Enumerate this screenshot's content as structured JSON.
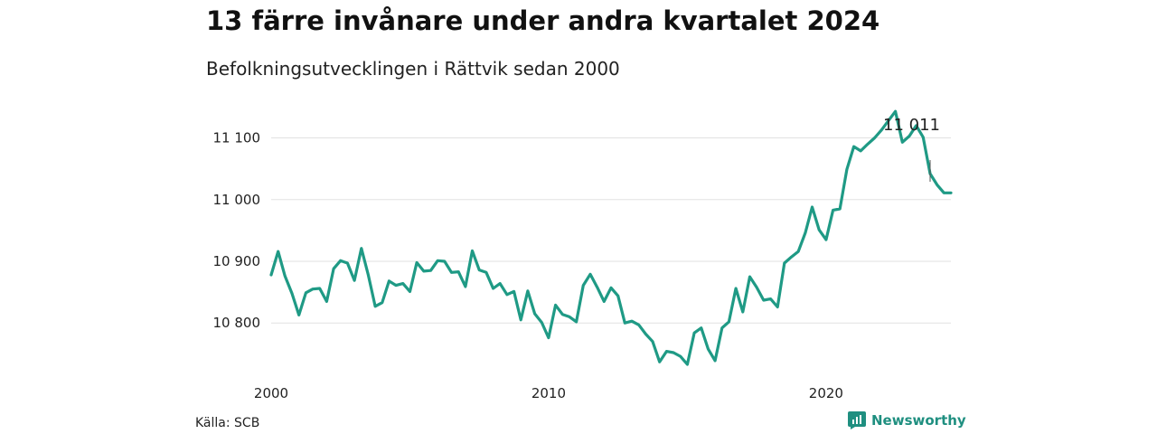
{
  "title": "13 färre invånare under andra kvartalet 2024",
  "subtitle": "Befolkningsutvecklingen i Rättvik sedan 2000",
  "source": "Källa: SCB",
  "brand": {
    "name": "Newsworthy",
    "icon": "newsworthy-logo-icon",
    "color": "#1f8f80"
  },
  "chart_data": {
    "type": "line",
    "title": "13 färre invånare under andra kvartalet 2024",
    "subtitle": "Befolkningsutvecklingen i Rättvik sedan 2000",
    "xlabel": "",
    "ylabel": "",
    "x_ticks": [
      2000,
      2010,
      2020
    ],
    "x_tick_labels": [
      "2000",
      "2010",
      "2020"
    ],
    "y_ticks": [
      10800,
      10900,
      11000,
      11100
    ],
    "y_tick_labels": [
      "10 800",
      "10 900",
      "11 000",
      "11 100"
    ],
    "xlim": [
      2000,
      2024.5
    ],
    "ylim": [
      10730,
      11155
    ],
    "grid": true,
    "line_color": "#1f9a85",
    "end_label": "11 011",
    "series": [
      {
        "x": [
          2000.0,
          2000.25,
          2000.5,
          2000.75,
          2001.0,
          2001.25,
          2001.5,
          2001.75,
          2002.0,
          2002.25,
          2002.5,
          2002.75,
          2003.0,
          2003.25,
          2003.5,
          2003.75,
          2004.0,
          2004.25,
          2004.5,
          2004.75,
          2005.0,
          2005.25,
          2005.5,
          2005.75,
          2006.0,
          2006.25,
          2006.5,
          2006.75,
          2007.0,
          2007.25,
          2007.5,
          2007.75,
          2008.0,
          2008.25,
          2008.5,
          2008.75,
          2009.0,
          2009.25,
          2009.5,
          2009.75,
          2010.0,
          2010.25,
          2010.5,
          2010.75,
          2011.0,
          2011.25,
          2011.5,
          2011.75,
          2012.0,
          2012.25,
          2012.5,
          2012.75,
          2013.0,
          2013.25,
          2013.5,
          2013.75,
          2014.0,
          2014.25,
          2014.5,
          2014.75,
          2015.0,
          2015.25,
          2015.5,
          2015.75,
          2016.0,
          2016.25,
          2016.5,
          2016.75,
          2017.0,
          2017.25,
          2017.5,
          2017.75,
          2018.0,
          2018.25,
          2018.5,
          2018.75,
          2019.0,
          2019.25,
          2019.5,
          2019.75,
          2020.0,
          2020.25,
          2020.5,
          2020.75,
          2021.0,
          2021.25,
          2021.5,
          2021.75,
          2022.0,
          2022.25,
          2022.5,
          2022.75,
          2023.0,
          2023.25,
          2023.5,
          2023.75,
          2024.0,
          2024.25,
          2024.5
        ],
        "values": [
          10878,
          10916,
          10876,
          10848,
          10813,
          10849,
          10855,
          10856,
          10835,
          10888,
          10901,
          10897,
          10869,
          10921,
          10878,
          10827,
          10833,
          10868,
          10861,
          10864,
          10851,
          10898,
          10884,
          10885,
          10901,
          10900,
          10882,
          10883,
          10859,
          10917,
          10886,
          10882,
          10856,
          10864,
          10846,
          10851,
          10805,
          10852,
          10815,
          10801,
          10776,
          10829,
          10814,
          10810,
          10802,
          10861,
          10879,
          10858,
          10835,
          10857,
          10844,
          10800,
          10803,
          10797,
          10782,
          10770,
          10737,
          10754,
          10752,
          10746,
          10733,
          10784,
          10792,
          10758,
          10739,
          10792,
          10802,
          10856,
          10818,
          10875,
          10858,
          10837,
          10839,
          10826,
          10897,
          10907,
          10916,
          10946,
          10988,
          10951,
          10935,
          10983,
          10985,
          11049,
          11086,
          11079,
          11090,
          11100,
          11113,
          11128,
          11143,
          11093,
          11103,
          11120,
          11101,
          11042,
          11024,
          11011,
          11011
        ]
      }
    ]
  }
}
